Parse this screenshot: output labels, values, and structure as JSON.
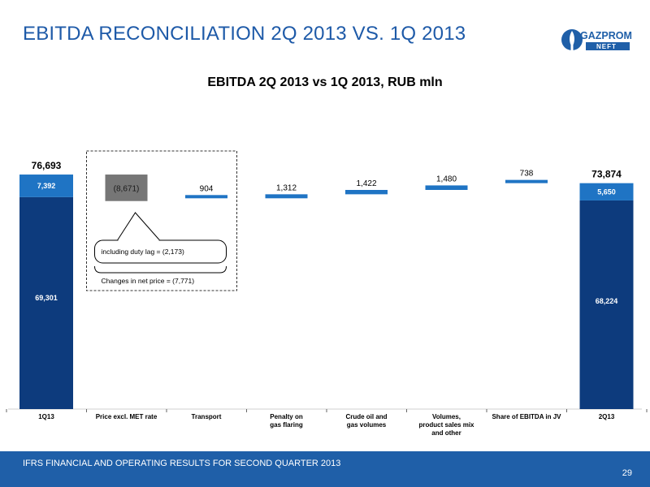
{
  "header": {
    "title": "EBITDA RECONCILIATION 2Q 2013 VS. 1Q 2013"
  },
  "logo": {
    "name": "GAZPROM",
    "sub": "N E F T"
  },
  "chart_data": {
    "type": "bar",
    "title": "EBITDA  2Q 2013 vs 1Q 2013, RUB mln",
    "unit": "RUB mln",
    "ylim": [
      0,
      80000
    ],
    "categories": [
      "1Q13",
      "Price excl. MET rate",
      "Transport",
      "Penalty on gas flaring",
      "Crude oil and gas volumes",
      "Volumes, product sales mix and other",
      "Share of EBITDA in JV",
      "2Q13"
    ],
    "totals": [
      {
        "category": "1Q13",
        "total_label": "76,693",
        "segments": [
          {
            "value": 69301,
            "label": "69,301",
            "color": "#0d3b7d"
          },
          {
            "value": 7392,
            "label": "7,392",
            "color": "#1f74c4"
          }
        ]
      },
      {
        "category": "2Q13",
        "total_label": "73,874",
        "segments": [
          {
            "value": 68224,
            "label": "68,224",
            "color": "#0d3b7d"
          },
          {
            "value": 5650,
            "label": "5,650",
            "color": "#1f74c4"
          }
        ]
      }
    ],
    "steps": [
      {
        "category": "Price excl. MET rate",
        "value": -8671,
        "label": "(8,671)",
        "color": "#767676"
      },
      {
        "category": "Transport",
        "value": 904,
        "label": "904",
        "color": "#1f74c4"
      },
      {
        "category": "Penalty on gas flaring",
        "value": 1312,
        "label": "1,312",
        "color": "#1f74c4"
      },
      {
        "category": "Crude oil and gas volumes",
        "value": 1422,
        "label": "1,422",
        "color": "#1f74c4"
      },
      {
        "category": "Volumes, product sales mix and other",
        "value": 1480,
        "label": "1,480",
        "color": "#1f74c4"
      },
      {
        "category": "Share of EBITDA in JV",
        "value": 738,
        "label": "738",
        "color": "#1f74c4"
      }
    ],
    "annotations": [
      {
        "text": "including  duty lag = (2,173)",
        "category": "Price excl. MET rate"
      },
      {
        "text": "Changes in net price = (7,771)",
        "category": "Price excl. MET rate"
      }
    ]
  },
  "footer": {
    "text": "IFRS FINANCIAL AND OPERATING RESULTS FOR SECOND QUARTER 2013",
    "page": "29"
  }
}
